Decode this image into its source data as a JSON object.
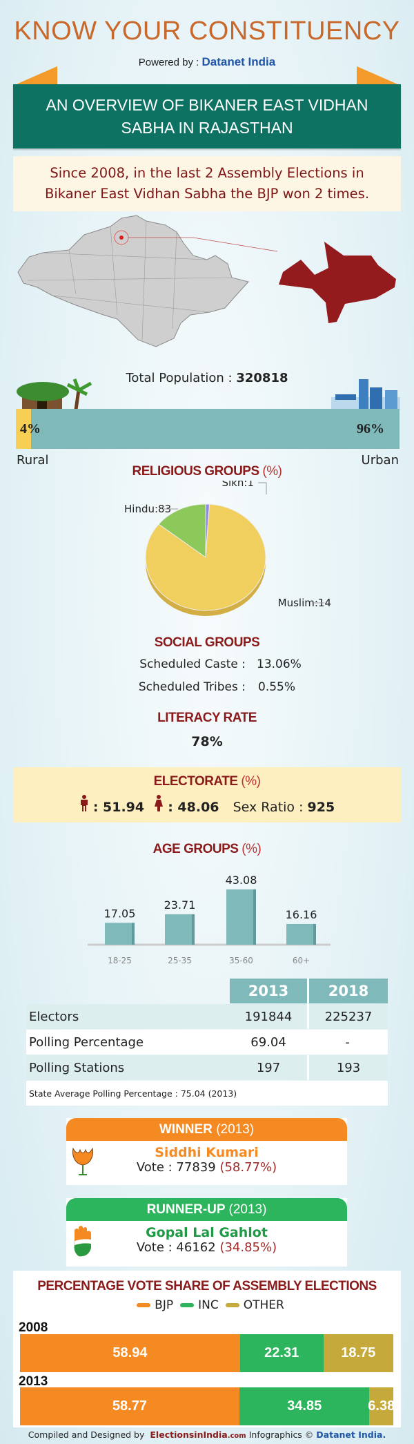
{
  "header": {
    "title": "KNOW YOUR CONSTITUENCY",
    "powered_by": "Powered by :",
    "brand": "Datanet India"
  },
  "banner": {
    "line1": "AN OVERVIEW OF BIKANER EAST VIDHAN",
    "line2": "SABHA IN RAJASTHAN"
  },
  "summary": {
    "line1": "Since 2008, in the last 2 Assembly Elections in",
    "line2": "Bikaner East Vidhan Sabha the BJP won 2 times."
  },
  "population": {
    "label": "Total Population :",
    "value": "320818",
    "rural_pct": 4,
    "urban_pct": 96,
    "rural_text": "4%",
    "urban_text": "96%",
    "rural_label": "Rural",
    "urban_label": "Urban"
  },
  "religion": {
    "title": "RELIGIOUS GROUPS",
    "unit": "(%)",
    "chart_data": {
      "type": "pie",
      "slices": [
        {
          "name": "Sikh",
          "value": 1,
          "label": "Sikh:1",
          "color": "#8c8ce0"
        },
        {
          "name": "Hindu",
          "value": 83,
          "label": "Hindu:83",
          "color": "#f0cf5e"
        },
        {
          "name": "Muslim",
          "value": 14,
          "label": "Muslim:14",
          "color": "#8dc85a"
        }
      ]
    }
  },
  "social": {
    "title": "SOCIAL GROUPS",
    "sc_label": "Scheduled Caste :",
    "sc_value": "13.06%",
    "st_label": "Scheduled Tribes :",
    "st_value": "0.55%"
  },
  "literacy": {
    "title": "LITERACY RATE",
    "value": "78%"
  },
  "electorate": {
    "title": "ELECTORATE",
    "unit": "(%)",
    "male": ": 51.94",
    "female": ": 48.06",
    "sex_ratio_label": "Sex Ratio :",
    "sex_ratio": "925"
  },
  "age": {
    "title": "AGE GROUPS",
    "unit": "(%)",
    "chart_data": {
      "type": "bar",
      "categories": [
        "18-25",
        "25-35",
        "35-60",
        "60+"
      ],
      "values": [
        17.05,
        23.71,
        43.08,
        16.16
      ],
      "labels": [
        "17.05",
        "23.71",
        "43.08",
        "16.16"
      ],
      "color": "#80b9ba"
    }
  },
  "table": {
    "columns": [
      "2013",
      "2018"
    ],
    "rows": [
      {
        "label": "Electors",
        "v": [
          "191844",
          "225237"
        ]
      },
      {
        "label": "Polling Percentage",
        "v": [
          "69.04",
          "-"
        ]
      },
      {
        "label": "Polling Stations",
        "v": [
          "197",
          "193"
        ]
      }
    ],
    "note": "State Average Polling Percentage : 75.04 (2013)"
  },
  "winner": {
    "title": "WINNER",
    "year": "(2013)",
    "name": "Siddhi Kumari",
    "vote": "Vote : 77839",
    "pct": "(58.77%)"
  },
  "runner": {
    "title": "RUNNER-UP",
    "year": "(2013)",
    "name": "Gopal Lal Gahlot",
    "vote": "Vote : 46162",
    "pct": "(34.85%)"
  },
  "vote_share": {
    "title": "PERCENTAGE VOTE SHARE OF ASSEMBLY ELECTIONS",
    "chart_data": {
      "type": "bar",
      "orientation": "horizontal-stacked",
      "legend": [
        "BJP",
        "INC",
        "OTHER"
      ],
      "colors": [
        "#f58a23",
        "#2db55d",
        "#c5a93a"
      ],
      "series": [
        {
          "year": "2008",
          "values": [
            58.94,
            22.31,
            18.75
          ],
          "labels": [
            "58.94",
            "22.31",
            "18.75"
          ]
        },
        {
          "year": "2013",
          "values": [
            58.77,
            34.85,
            6.38
          ],
          "labels": [
            "58.77",
            "34.85",
            "6.38"
          ]
        }
      ]
    }
  },
  "footer": {
    "text1": "Compiled and Designed by",
    "site": "ElectionsinIndia",
    "site_suffix": ".com",
    "text2": "Infographics ©",
    "brand": "Datanet India."
  }
}
